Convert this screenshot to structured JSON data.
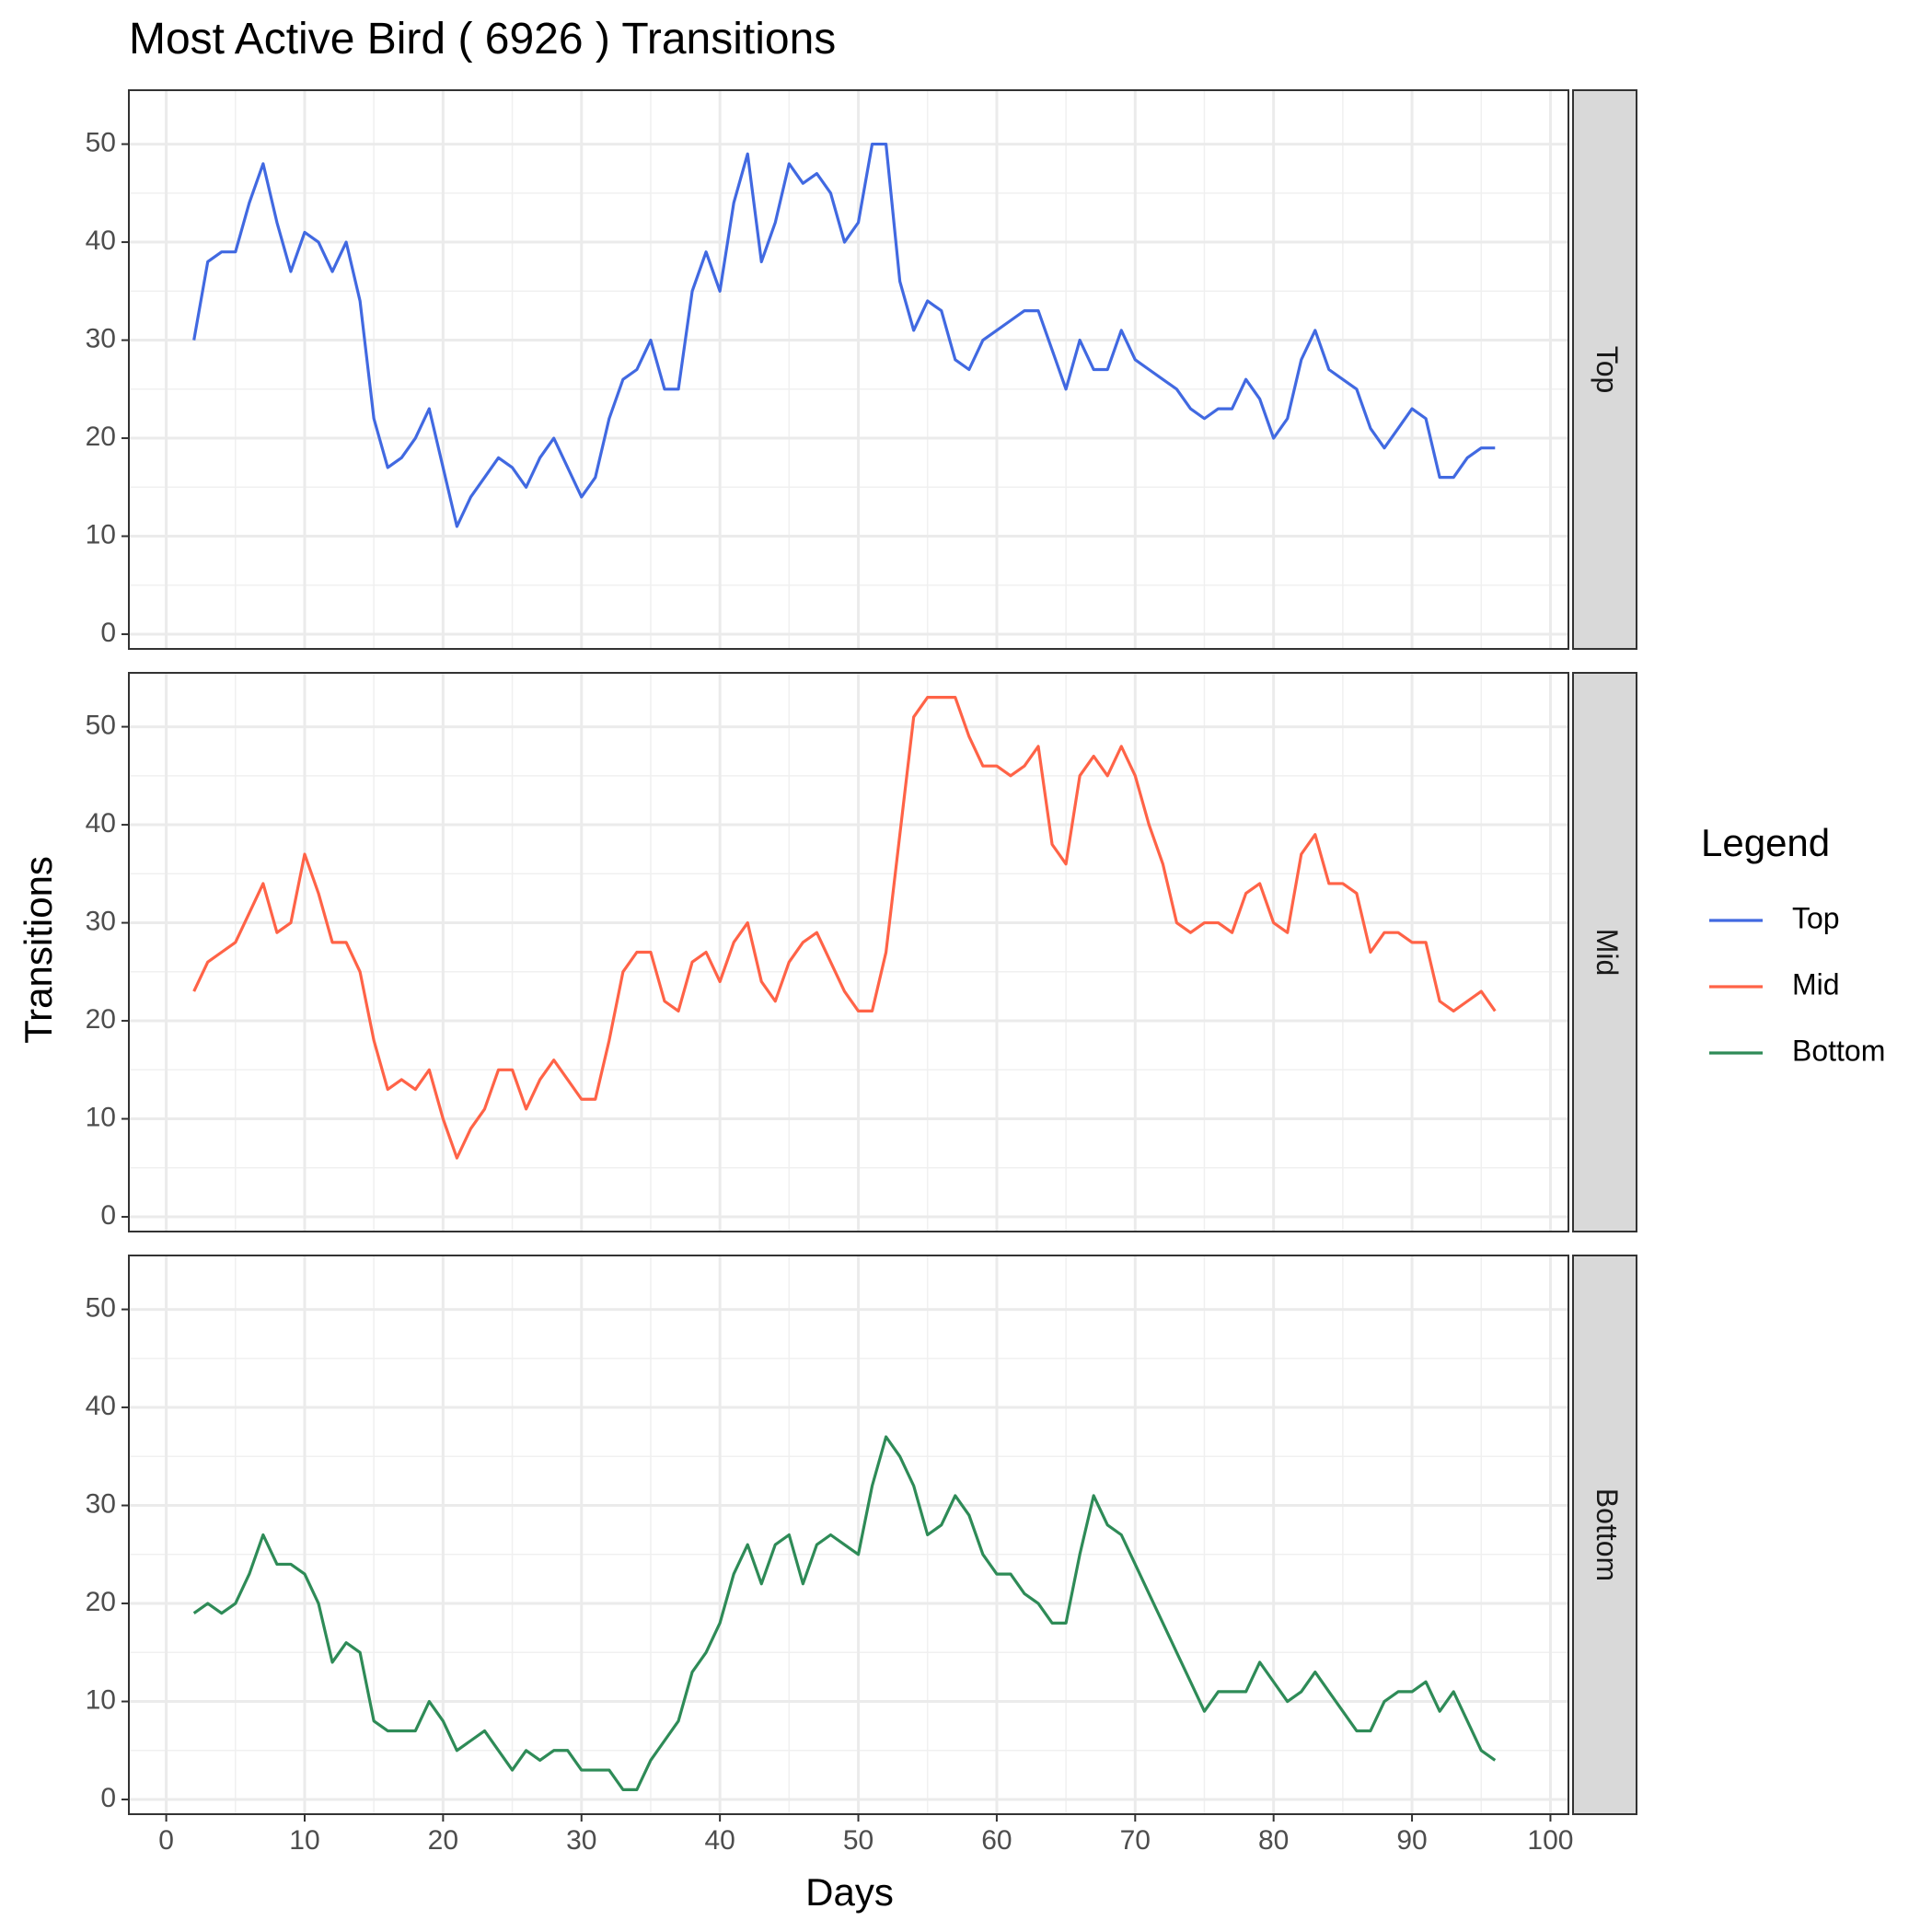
{
  "chart_data": {
    "type": "line",
    "title": "Most Active Bird ( 6926 ) Transitions",
    "xlabel": "Days",
    "ylabel": "Transitions",
    "xlim": [
      -2.7,
      101.3
    ],
    "ylim": [
      -1.5,
      55.5
    ],
    "x_ticks": [
      0,
      10,
      20,
      30,
      40,
      50,
      60,
      70,
      80,
      90,
      100
    ],
    "y_ticks": [
      0,
      10,
      20,
      30,
      40,
      50
    ],
    "grid": true,
    "legend": {
      "title": "Legend",
      "position": "right",
      "items": [
        "Top",
        "Mid",
        "Bottom"
      ]
    },
    "facets": [
      {
        "name": "Top",
        "color": "#4169E1",
        "x": [
          2,
          3,
          4,
          5,
          6,
          7,
          8,
          9,
          10,
          11,
          12,
          13,
          14,
          15,
          16,
          17,
          18,
          19,
          20,
          21,
          22,
          23,
          24,
          25,
          26,
          27,
          28,
          29,
          30,
          31,
          32,
          33,
          34,
          35,
          36,
          37,
          38,
          39,
          40,
          41,
          42,
          43,
          44,
          45,
          46,
          47,
          48,
          49,
          50,
          51,
          52,
          53,
          54,
          55,
          56,
          57,
          58,
          59,
          60,
          61,
          62,
          63,
          64,
          65,
          66,
          67,
          68,
          69,
          70,
          71,
          72,
          73,
          74,
          75,
          76,
          77,
          78,
          79,
          80,
          81,
          82,
          83,
          84,
          85,
          86,
          87,
          88,
          89,
          90,
          91,
          92,
          93,
          94,
          95,
          96
        ],
        "values": [
          30,
          38,
          39,
          39,
          44,
          48,
          42,
          37,
          41,
          40,
          37,
          40,
          34,
          22,
          17,
          18,
          20,
          23,
          17,
          11,
          14,
          16,
          18,
          17,
          15,
          18,
          20,
          17,
          14,
          16,
          22,
          26,
          27,
          30,
          25,
          25,
          35,
          39,
          35,
          44,
          49,
          38,
          42,
          48,
          46,
          47,
          45,
          40,
          42,
          50,
          50,
          36,
          31,
          34,
          33,
          28,
          27,
          30,
          31,
          32,
          33,
          33,
          29,
          25,
          30,
          27,
          27,
          31,
          28,
          27,
          26,
          25,
          23,
          22,
          23,
          23,
          26,
          24,
          20,
          22,
          28,
          31,
          27,
          26,
          25,
          21,
          19,
          21,
          23,
          22,
          16,
          16,
          18,
          19,
          19
        ]
      },
      {
        "name": "Mid",
        "color": "#FF6347",
        "x": [
          2,
          3,
          4,
          5,
          6,
          7,
          8,
          9,
          10,
          11,
          12,
          13,
          14,
          15,
          16,
          17,
          18,
          19,
          20,
          21,
          22,
          23,
          24,
          25,
          26,
          27,
          28,
          29,
          30,
          31,
          32,
          33,
          34,
          35,
          36,
          37,
          38,
          39,
          40,
          41,
          42,
          43,
          44,
          45,
          46,
          47,
          48,
          49,
          50,
          51,
          52,
          53,
          54,
          55,
          56,
          57,
          58,
          59,
          60,
          61,
          62,
          63,
          64,
          65,
          66,
          67,
          68,
          69,
          70,
          71,
          72,
          73,
          74,
          75,
          76,
          77,
          78,
          79,
          80,
          81,
          82,
          83,
          84,
          85,
          86,
          87,
          88,
          89,
          90,
          91,
          92,
          93,
          94,
          95,
          96
        ],
        "values": [
          23,
          26,
          27,
          28,
          31,
          34,
          29,
          30,
          37,
          33,
          28,
          28,
          25,
          18,
          13,
          14,
          13,
          15,
          10,
          6,
          9,
          11,
          15,
          15,
          11,
          14,
          16,
          14,
          12,
          12,
          18,
          25,
          27,
          27,
          22,
          21,
          26,
          27,
          24,
          28,
          30,
          24,
          22,
          26,
          28,
          29,
          26,
          23,
          21,
          21,
          27,
          39,
          51,
          53,
          53,
          53,
          49,
          46,
          46,
          45,
          46,
          48,
          38,
          36,
          45,
          47,
          45,
          48,
          45,
          40,
          36,
          30,
          29,
          30,
          30,
          29,
          33,
          34,
          30,
          29,
          37,
          39,
          34,
          34,
          33,
          27,
          29,
          29,
          28,
          28,
          22,
          21,
          22,
          23,
          21
        ]
      },
      {
        "name": "Bottom",
        "color": "#2E8B57",
        "x": [
          2,
          3,
          4,
          5,
          6,
          7,
          8,
          9,
          10,
          11,
          12,
          13,
          14,
          15,
          16,
          17,
          18,
          19,
          20,
          21,
          22,
          23,
          24,
          25,
          26,
          27,
          28,
          29,
          30,
          31,
          32,
          33,
          34,
          35,
          36,
          37,
          38,
          39,
          40,
          41,
          42,
          43,
          44,
          45,
          46,
          47,
          48,
          49,
          50,
          51,
          52,
          53,
          54,
          55,
          56,
          57,
          58,
          59,
          60,
          61,
          62,
          63,
          64,
          65,
          66,
          67,
          68,
          69,
          70,
          71,
          72,
          73,
          74,
          75,
          76,
          77,
          78,
          79,
          80,
          81,
          82,
          83,
          84,
          85,
          86,
          87,
          88,
          89,
          90,
          91,
          92,
          93,
          94,
          95,
          96
        ],
        "values": [
          19,
          20,
          19,
          20,
          23,
          27,
          24,
          24,
          23,
          20,
          14,
          16,
          15,
          8,
          7,
          7,
          7,
          10,
          8,
          5,
          6,
          7,
          5,
          3,
          5,
          4,
          5,
          5,
          3,
          3,
          3,
          1,
          1,
          4,
          6,
          8,
          13,
          15,
          18,
          23,
          26,
          22,
          26,
          27,
          22,
          26,
          27,
          26,
          25,
          32,
          37,
          35,
          32,
          27,
          28,
          31,
          29,
          25,
          23,
          23,
          21,
          20,
          18,
          18,
          25,
          31,
          28,
          27,
          24,
          21,
          18,
          15,
          12,
          9,
          11,
          11,
          11,
          14,
          12,
          10,
          11,
          13,
          11,
          9,
          7,
          7,
          10,
          11,
          11,
          12,
          9,
          11,
          8,
          5,
          4
        ]
      }
    ]
  }
}
